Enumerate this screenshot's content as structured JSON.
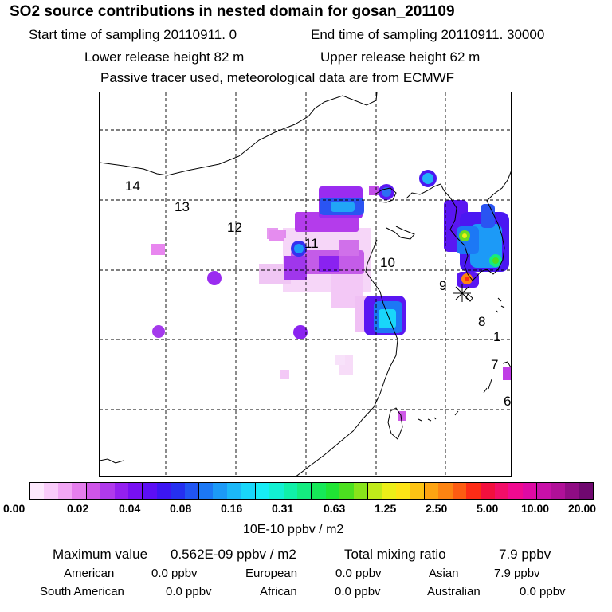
{
  "header": {
    "title": "SO2 source contributions in nested domain for gosan_201109",
    "start_time": "Start time of sampling 20110911.     0",
    "end_time": "End time of sampling 20110911. 30000",
    "lower_release": "Lower release height   82 m",
    "upper_release": "Upper release height   62 m",
    "tracer_note": "Passive tracer used, meteorological data are from ECMWF"
  },
  "map": {
    "region_labels": [
      "14",
      "13",
      "12",
      "11",
      "10",
      "9",
      "8",
      "1",
      "7",
      "6"
    ],
    "receptor_marker": "gosan-receptor-asterisk"
  },
  "legend": {
    "tick_labels": [
      "0.00",
      "0.02",
      "0.04",
      "0.08",
      "0.16",
      "0.31",
      "0.63",
      "1.25",
      "2.50",
      "5.00",
      "10.00",
      "20.00"
    ],
    "unit": "10E-10 ppbv / m2",
    "colors": [
      "#fde9fd",
      "#f9cbfa",
      "#f2a7f5",
      "#e57eed",
      "#cf55e8",
      "#b03aeb",
      "#9420ef",
      "#7810f2",
      "#5c0ff4",
      "#3c16f2",
      "#2530f0",
      "#2155f2",
      "#1c78f5",
      "#1c9af7",
      "#1cb8f8",
      "#19d6fa",
      "#17ecf5",
      "#12f0d2",
      "#10f0a8",
      "#14ec80",
      "#16e858",
      "#20e434",
      "#4ce020",
      "#88e41a",
      "#c0ea1a",
      "#ecee18",
      "#fde416",
      "#fdc414",
      "#fda412",
      "#fd8412",
      "#fd5c12",
      "#fd2c16",
      "#f2103e",
      "#f20e68",
      "#f00a90",
      "#de0aa4",
      "#c810a8",
      "#b01098",
      "#900c84",
      "#700870"
    ]
  },
  "stats": {
    "max_label": "Maximum value",
    "max_value": "0.562E-09 ppbv / m2",
    "total_label": "Total mixing ratio",
    "total_value": "7.9 ppbv",
    "american_label": "American",
    "american_value": "0.0 ppbv",
    "european_label": "European",
    "european_value": "0.0 ppbv",
    "asian_label": "Asian",
    "asian_value": "7.9 ppbv",
    "south_american_label": "South American",
    "south_american_value": "0.0 ppbv",
    "african_label": "African",
    "african_value": "0.0 ppbv",
    "australian_label": "Australian",
    "australian_value": "0.0 ppbv"
  }
}
